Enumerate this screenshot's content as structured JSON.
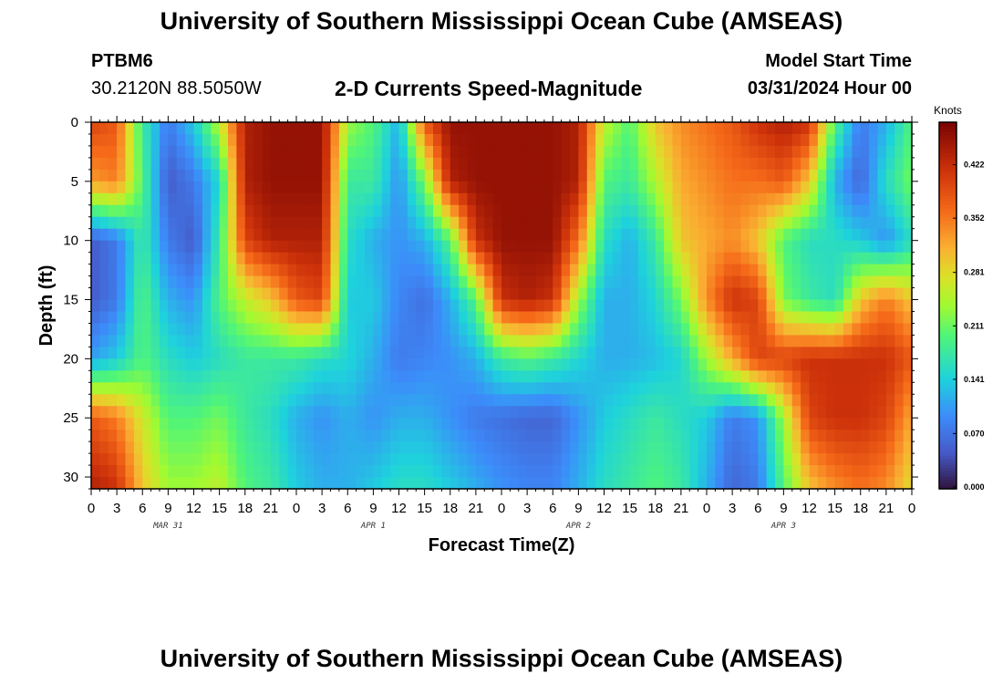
{
  "header": {
    "title": "University of Southern Mississippi Ocean Cube (AMSEAS)",
    "station": "PTBM6",
    "coordinates": "30.2120N  88.5050W",
    "subtitle": "2-D Currents Speed-Magnitude",
    "model_start_label": "Model Start Time",
    "model_start_value": "03/31/2024 Hour 00"
  },
  "footer": {
    "title": "University of Southern Mississippi Ocean Cube (AMSEAS)"
  },
  "chart_data": {
    "type": "heatmap",
    "title": "2-D Currents Speed-Magnitude",
    "xlabel": "Forecast Time(Z)",
    "ylabel": "Depth (ft)",
    "x_ticks": [
      "0",
      "3",
      "6",
      "9",
      "12",
      "15",
      "18",
      "21",
      "0",
      "3",
      "6",
      "9",
      "12",
      "15",
      "18",
      "21",
      "0",
      "3",
      "6",
      "9",
      "12",
      "15",
      "18",
      "21",
      "0",
      "3",
      "6",
      "9",
      "12",
      "15",
      "18",
      "21",
      "0"
    ],
    "x_range_hours": [
      0,
      96
    ],
    "day_labels": [
      "MAR 31",
      "APR 1",
      "APR 2",
      "APR 3"
    ],
    "y_ticks": [
      "0",
      "5",
      "10",
      "15",
      "20",
      "25",
      "30"
    ],
    "y_range": [
      0,
      31
    ],
    "y_inverted": true,
    "colorbar": {
      "unit": "Knots",
      "ticks": [
        "0.422",
        "0.352",
        "0.281",
        "0.211",
        "0.141",
        "0.070",
        "0.000"
      ],
      "range": [
        0,
        0.48
      ]
    },
    "x_hours": [
      0,
      3,
      6,
      9,
      12,
      15,
      18,
      21,
      24,
      27,
      30,
      33,
      36,
      39,
      42,
      45,
      48,
      51,
      54,
      57,
      60,
      63,
      66,
      69,
      72,
      75,
      78,
      81,
      84,
      87,
      90,
      93,
      96
    ],
    "y_depths": [
      0,
      5,
      10,
      15,
      20,
      25,
      31
    ],
    "values": [
      [
        0.4,
        0.33,
        0.05,
        0.05,
        0.11,
        0.38,
        0.44
      ],
      [
        0.38,
        0.35,
        0.08,
        0.08,
        0.14,
        0.35,
        0.42
      ],
      [
        0.18,
        0.2,
        0.18,
        0.2,
        0.2,
        0.27,
        0.3
      ],
      [
        0.08,
        0.05,
        0.08,
        0.12,
        0.16,
        0.2,
        0.24
      ],
      [
        0.14,
        0.08,
        0.05,
        0.1,
        0.14,
        0.2,
        0.24
      ],
      [
        0.26,
        0.15,
        0.18,
        0.2,
        0.16,
        0.22,
        0.26
      ],
      [
        0.44,
        0.44,
        0.4,
        0.26,
        0.18,
        0.18,
        0.2
      ],
      [
        0.46,
        0.46,
        0.44,
        0.3,
        0.18,
        0.16,
        0.18
      ],
      [
        0.46,
        0.46,
        0.44,
        0.38,
        0.18,
        0.12,
        0.14
      ],
      [
        0.46,
        0.46,
        0.44,
        0.4,
        0.16,
        0.1,
        0.12
      ],
      [
        0.24,
        0.18,
        0.16,
        0.14,
        0.15,
        0.12,
        0.12
      ],
      [
        0.2,
        0.18,
        0.12,
        0.14,
        0.12,
        0.1,
        0.14
      ],
      [
        0.12,
        0.1,
        0.1,
        0.09,
        0.08,
        0.12,
        0.16
      ],
      [
        0.38,
        0.22,
        0.12,
        0.07,
        0.09,
        0.12,
        0.16
      ],
      [
        0.46,
        0.44,
        0.2,
        0.12,
        0.1,
        0.1,
        0.14
      ],
      [
        0.46,
        0.46,
        0.42,
        0.2,
        0.12,
        0.08,
        0.12
      ],
      [
        0.46,
        0.46,
        0.46,
        0.42,
        0.18,
        0.07,
        0.1
      ],
      [
        0.46,
        0.46,
        0.46,
        0.44,
        0.2,
        0.06,
        0.09
      ],
      [
        0.46,
        0.46,
        0.46,
        0.42,
        0.18,
        0.06,
        0.09
      ],
      [
        0.44,
        0.44,
        0.36,
        0.24,
        0.15,
        0.1,
        0.12
      ],
      [
        0.26,
        0.2,
        0.16,
        0.12,
        0.12,
        0.14,
        0.16
      ],
      [
        0.2,
        0.18,
        0.12,
        0.12,
        0.12,
        0.16,
        0.18
      ],
      [
        0.3,
        0.25,
        0.18,
        0.15,
        0.13,
        0.18,
        0.2
      ],
      [
        0.34,
        0.32,
        0.3,
        0.22,
        0.15,
        0.16,
        0.18
      ],
      [
        0.36,
        0.34,
        0.32,
        0.34,
        0.24,
        0.14,
        0.12
      ],
      [
        0.38,
        0.36,
        0.34,
        0.42,
        0.32,
        0.08,
        0.06
      ],
      [
        0.42,
        0.36,
        0.3,
        0.4,
        0.4,
        0.1,
        0.08
      ],
      [
        0.44,
        0.38,
        0.2,
        0.22,
        0.4,
        0.24,
        0.2
      ],
      [
        0.42,
        0.3,
        0.16,
        0.18,
        0.42,
        0.4,
        0.3
      ],
      [
        0.2,
        0.12,
        0.16,
        0.16,
        0.42,
        0.42,
        0.34
      ],
      [
        0.08,
        0.06,
        0.14,
        0.3,
        0.42,
        0.42,
        0.36
      ],
      [
        0.12,
        0.16,
        0.1,
        0.35,
        0.42,
        0.4,
        0.34
      ],
      [
        0.2,
        0.22,
        0.16,
        0.3,
        0.38,
        0.32,
        0.28
      ]
    ]
  }
}
